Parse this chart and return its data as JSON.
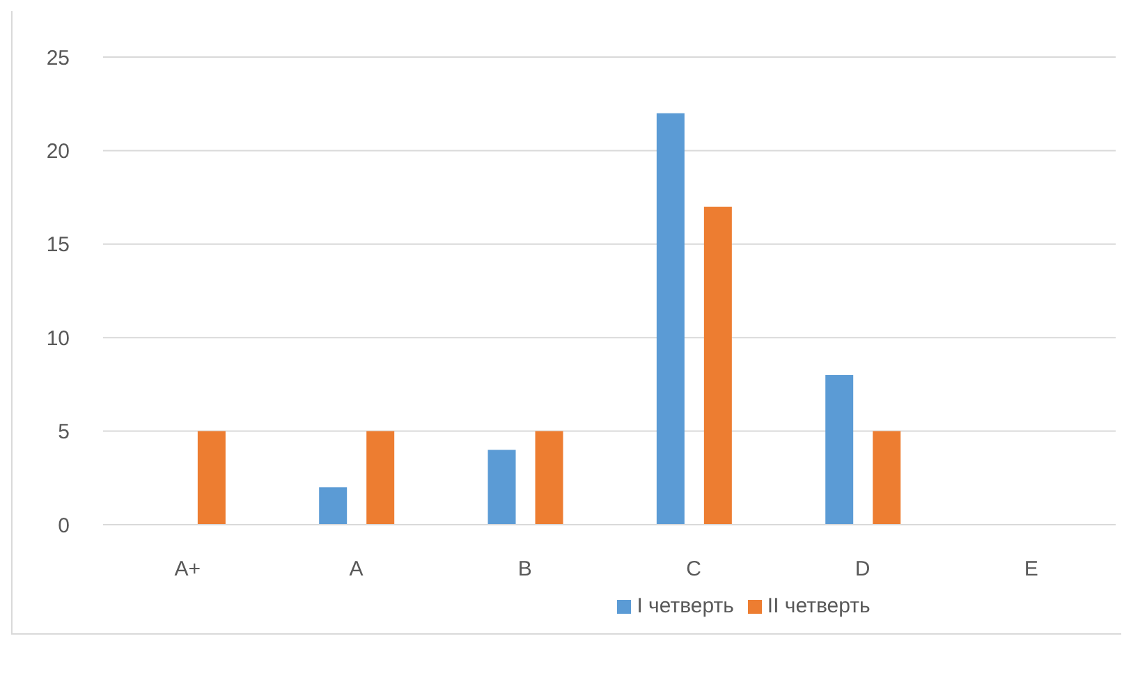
{
  "chart_data": {
    "type": "bar",
    "categories": [
      "A+",
      "A",
      "B",
      "C",
      "D",
      "E"
    ],
    "series": [
      {
        "name": "I четверть",
        "color": "#5b9bd5",
        "values": [
          0,
          2,
          4,
          22,
          8,
          0
        ]
      },
      {
        "name": "II четверть",
        "color": "#ed7d31",
        "values": [
          5,
          5,
          5,
          17,
          5,
          0
        ]
      }
    ],
    "ylim": [
      0,
      25
    ],
    "yticks": [
      0,
      5,
      10,
      15,
      20,
      25
    ],
    "grid": "y",
    "legend": "bottom"
  }
}
